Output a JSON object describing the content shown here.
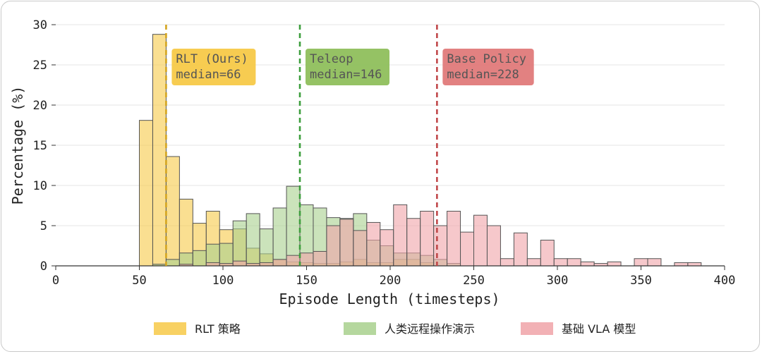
{
  "chart_data": {
    "type": "histogram",
    "xlabel": "Episode Length (timesteps)",
    "ylabel": "Percentage (%)",
    "xlim": [
      0,
      400
    ],
    "ylim": [
      0,
      30
    ],
    "x_ticks": [
      0,
      50,
      100,
      150,
      200,
      250,
      300,
      350,
      400
    ],
    "y_ticks": [
      0,
      5,
      10,
      15,
      20,
      25,
      30
    ],
    "grid": "horizontal",
    "legend_position": "bottom",
    "bin_width": 8,
    "series": [
      {
        "key": "rlt",
        "name": "RLT 策略",
        "color": "#f7c948",
        "bins": [
          [
            50,
            18.1
          ],
          [
            58,
            28.8
          ],
          [
            66,
            13.6
          ],
          [
            74,
            8.3
          ],
          [
            82,
            5.3
          ],
          [
            90,
            6.8
          ],
          [
            98,
            4.5
          ],
          [
            106,
            4.6
          ],
          [
            114,
            2.2
          ],
          [
            122,
            1.5
          ],
          [
            130,
            0.8
          ],
          [
            138,
            0.5
          ],
          [
            146,
            0.4
          ],
          [
            154,
            0.3
          ],
          [
            162,
            0.3
          ],
          [
            170,
            0.5
          ],
          [
            178,
            0.8
          ],
          [
            186,
            0.4
          ],
          [
            194,
            0.4
          ],
          [
            202,
            0.8
          ],
          [
            210,
            0.8
          ],
          [
            218,
            0.4
          ]
        ]
      },
      {
        "key": "teleop",
        "name": "人类远程操作演示",
        "color": "#a8d08d",
        "bins": [
          [
            58,
            0.2
          ],
          [
            66,
            0.8
          ],
          [
            74,
            1.6
          ],
          [
            82,
            1.9
          ],
          [
            90,
            2.7
          ],
          [
            98,
            2.8
          ],
          [
            106,
            5.6
          ],
          [
            114,
            6.5
          ],
          [
            122,
            4.6
          ],
          [
            130,
            7.2
          ],
          [
            138,
            9.9
          ],
          [
            146,
            7.6
          ],
          [
            154,
            7.2
          ],
          [
            162,
            6.0
          ],
          [
            170,
            5.9
          ],
          [
            178,
            6.5
          ],
          [
            186,
            3.2
          ],
          [
            194,
            2.5
          ],
          [
            202,
            1.6
          ],
          [
            210,
            1.6
          ],
          [
            218,
            1.3
          ],
          [
            226,
            0.8
          ],
          [
            234,
            0.3
          ]
        ]
      },
      {
        "key": "base",
        "name": "基础 VLA 模型",
        "color": "#f0a3a8",
        "bins": [
          [
            74,
            0.2
          ],
          [
            90,
            0.4
          ],
          [
            98,
            0.3
          ],
          [
            106,
            0.6
          ],
          [
            114,
            0.3
          ],
          [
            122,
            0.4
          ],
          [
            130,
            0.8
          ],
          [
            138,
            1.3
          ],
          [
            146,
            1.6
          ],
          [
            154,
            1.8
          ],
          [
            162,
            5.0
          ],
          [
            170,
            5.8
          ],
          [
            178,
            4.4
          ],
          [
            186,
            5.4
          ],
          [
            194,
            4.5
          ],
          [
            202,
            7.6
          ],
          [
            210,
            5.9
          ],
          [
            218,
            6.8
          ],
          [
            226,
            5.0
          ],
          [
            234,
            6.8
          ],
          [
            242,
            4.2
          ],
          [
            250,
            6.3
          ],
          [
            258,
            5.0
          ],
          [
            266,
            0.9
          ],
          [
            274,
            4.1
          ],
          [
            282,
            0.9
          ],
          [
            290,
            3.2
          ],
          [
            298,
            0.9
          ],
          [
            306,
            0.9
          ],
          [
            314,
            0.5
          ],
          [
            322,
            0.3
          ],
          [
            330,
            0.5
          ],
          [
            346,
            0.9
          ],
          [
            354,
            0.9
          ],
          [
            370,
            0.4
          ],
          [
            378,
            0.4
          ]
        ]
      }
    ],
    "medians": [
      {
        "key": "rlt",
        "value": 66,
        "label_line1": "RLT (Ours)",
        "label_line2": "median=66",
        "line_color": "#d4a520",
        "box_color": "#f7c948"
      },
      {
        "key": "teleop",
        "value": 146,
        "label_line1": "Teleop",
        "label_line2": "median=146",
        "line_color": "#3d9e3d",
        "box_color": "#8fbf5c"
      },
      {
        "key": "base",
        "value": 228,
        "label_line1": "Base Policy",
        "label_line2": "median=228",
        "line_color": "#c0484a",
        "box_color": "#e07a7a"
      }
    ]
  }
}
